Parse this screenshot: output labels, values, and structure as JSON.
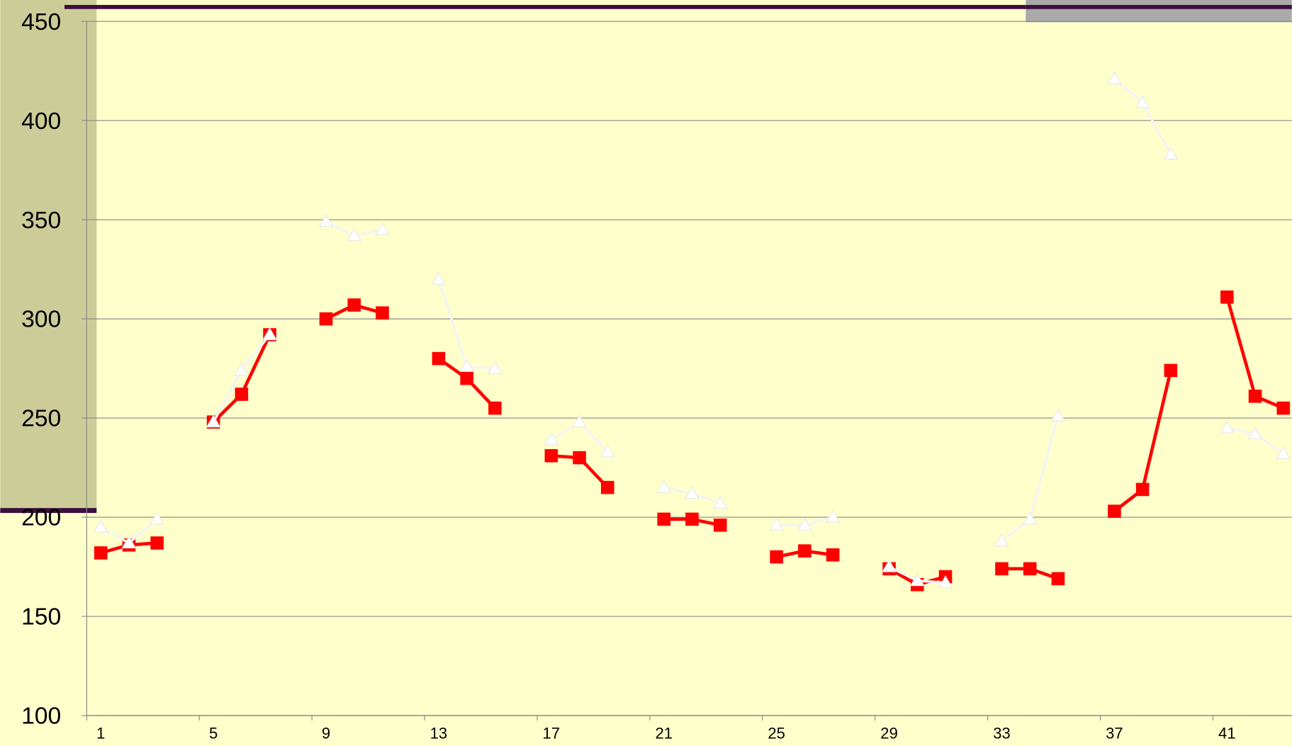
{
  "chart_data": {
    "type": "line",
    "x": [
      1,
      2,
      3,
      4,
      5,
      6,
      7,
      8,
      9,
      10,
      11,
      12,
      13,
      14,
      15,
      16,
      17,
      18,
      19,
      20,
      21,
      22,
      23,
      24,
      25,
      26,
      27,
      28,
      29,
      30,
      31,
      32,
      33,
      34,
      35,
      36,
      37,
      38,
      39,
      40,
      41,
      42,
      43
    ],
    "series": [
      {
        "color": "#ff0000",
        "marker": "square",
        "values": [
          182,
          186,
          187,
          null,
          248,
          262,
          292,
          null,
          300,
          307,
          303,
          null,
          280,
          270,
          255,
          null,
          231,
          230,
          215,
          null,
          199,
          199,
          196,
          null,
          180,
          183,
          181,
          null,
          174,
          166,
          170,
          null,
          174,
          174,
          169,
          null,
          203,
          214,
          274,
          null,
          311,
          261,
          255
        ]
      },
      {
        "color": "#ffffff",
        "marker": "triangle",
        "values": [
          195,
          187,
          199,
          null,
          248,
          274,
          292,
          null,
          349,
          342,
          345,
          null,
          320,
          276,
          275,
          null,
          239,
          248,
          233,
          null,
          215,
          212,
          207,
          null,
          196,
          196,
          200,
          null,
          175,
          168,
          167,
          null,
          188,
          199,
          251,
          null,
          421,
          409,
          383,
          null,
          245,
          242,
          232
        ]
      }
    ],
    "xlim": [
      0.5,
      43.3
    ],
    "xticks": [
      1,
      5,
      9,
      13,
      17,
      21,
      25,
      29,
      33,
      37,
      41
    ],
    "ylim": [
      100,
      450
    ],
    "yticks": [
      100,
      150,
      200,
      250,
      300,
      350,
      400,
      450
    ],
    "grid": true
  }
}
